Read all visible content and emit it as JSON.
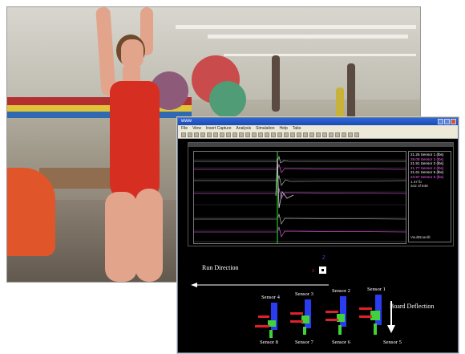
{
  "window": {
    "title": "www",
    "menu": [
      "File",
      "View",
      "Insert Capture",
      "Analysis",
      "Simulation",
      "Help",
      "Tabs"
    ]
  },
  "plot": {
    "legend": [
      {
        "label": "Sensor 1 (lbs)",
        "value": "21.25",
        "color": "#ffffff"
      },
      {
        "label": "Sensor 2 (lbs)",
        "value": "28.08",
        "color": "#ff66ff"
      },
      {
        "label": "Sensor 3 (lbs)",
        "value": "21.91",
        "color": "#ffffff"
      },
      {
        "label": "Sensor 4 (lbs)",
        "value": "21.77",
        "color": "#ff66ff"
      },
      {
        "label": "Sensor 5 (lbs)",
        "value": "21.61",
        "color": "#ffffff"
      },
      {
        "label": "Sensor 6 (lbs)",
        "value": "23.97",
        "color": "#ff66ff"
      }
    ],
    "extra_1": "1.47 lb",
    "extra_2": "342 of 848",
    "footer": "VaultBoardlt"
  },
  "stage": {
    "run_direction": "Run Direction",
    "board_deflection": "Board Deflection",
    "top_label": "Z",
    "marker_label": "X",
    "sensors_top": [
      "Sensor 4",
      "Sensor 3",
      "Sensor 2",
      "Sensor 1"
    ],
    "sensors_bottom": [
      "Sensor 8",
      "Sensor 7",
      "Sensor 6",
      "Sensor 5"
    ]
  },
  "colors": {
    "sensor_blue": "#2a3cf0",
    "sensor_green": "#3fd23a",
    "sensor_red": "#e0202a",
    "trace_green": "#1faa1f"
  }
}
